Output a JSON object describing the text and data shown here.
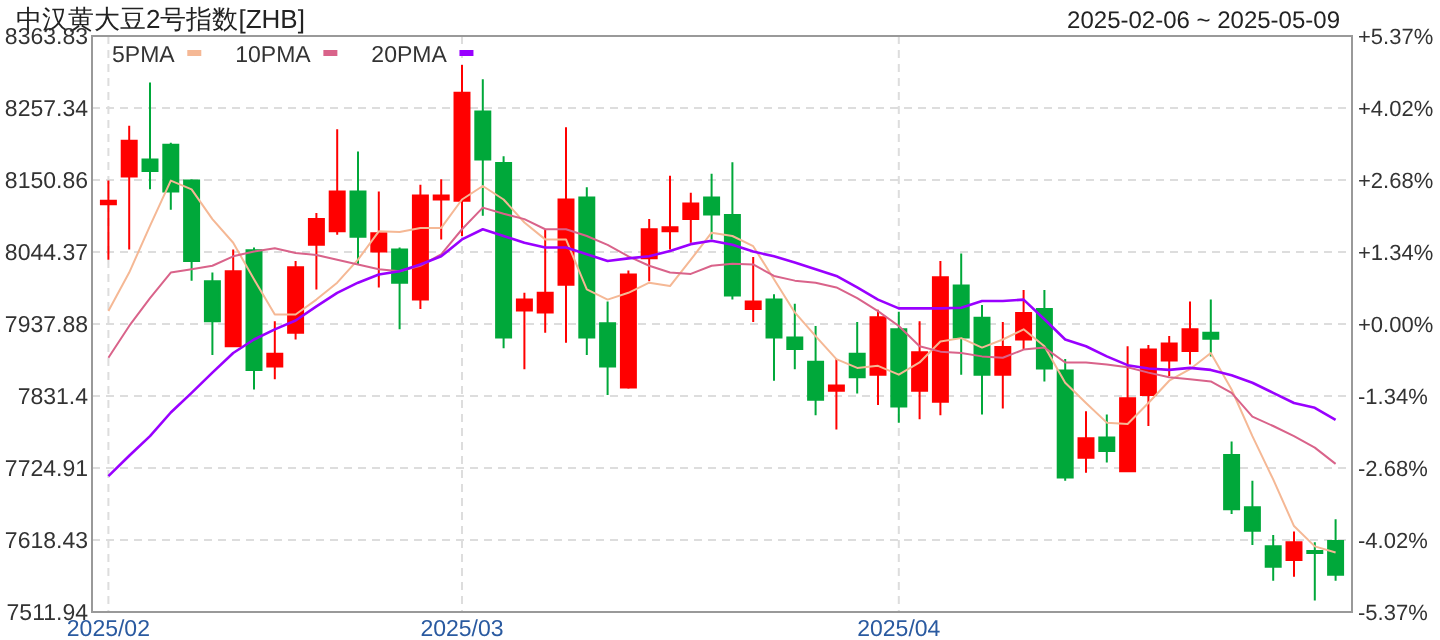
{
  "chart_data": {
    "type": "candlestick",
    "title": "中汉黄大豆2号指数[ZHB]",
    "subtitle": "2025-02-06 ~ 2025-05-09",
    "categories": [
      "2025/02",
      null,
      null,
      null,
      null,
      null,
      null,
      null,
      null,
      null,
      null,
      null,
      null,
      null,
      null,
      null,
      null,
      "2025/03",
      null,
      null,
      null,
      null,
      null,
      null,
      null,
      null,
      null,
      null,
      null,
      null,
      null,
      null,
      null,
      null,
      null,
      null,
      null,
      null,
      "2025/04",
      null,
      null,
      null,
      null,
      null,
      null,
      null,
      null,
      null,
      null,
      null,
      null,
      null,
      null,
      null,
      null,
      null,
      null,
      null,
      null,
      null
    ],
    "ohlc": [
      [
        8115,
        8150,
        8033,
        8120
      ],
      [
        8156,
        8231,
        8048,
        8209
      ],
      [
        8181,
        8295,
        8137,
        8164
      ],
      [
        8203,
        8206,
        8107,
        8134
      ],
      [
        8150,
        8152,
        8002,
        8031
      ],
      [
        8001,
        8014,
        7892,
        7942
      ],
      [
        7905,
        8048,
        7905,
        8016
      ],
      [
        8047,
        8051,
        7841,
        7870
      ],
      [
        7875,
        7942,
        7856,
        7894
      ],
      [
        7925,
        8031,
        7915,
        8022
      ],
      [
        8055,
        8102,
        7989,
        8093
      ],
      [
        8075,
        8226,
        8070,
        8134
      ],
      [
        8134,
        8193,
        8026,
        8067
      ],
      [
        8045,
        8134,
        7992,
        8072
      ],
      [
        8048,
        8051,
        7930,
        7999
      ],
      [
        7974,
        8144,
        7960,
        8128
      ],
      [
        8122,
        8152,
        8063,
        8128
      ],
      [
        8120,
        8321,
        8068,
        8280
      ],
      [
        8252,
        8300,
        8098,
        8181
      ],
      [
        8176,
        8186,
        7902,
        7918
      ],
      [
        7958,
        7984,
        7871,
        7974
      ],
      [
        7955,
        8078,
        7925,
        7984
      ],
      [
        7996,
        8229,
        7910,
        8122
      ],
      [
        8125,
        8140,
        7892,
        7918
      ],
      [
        7939,
        7971,
        7833,
        7875
      ],
      [
        7844,
        8017,
        7842,
        8011
      ],
      [
        8035,
        8093,
        8001,
        8078
      ],
      [
        8075,
        8157,
        8048,
        8081
      ],
      [
        8093,
        8132,
        8058,
        8116
      ],
      [
        8125,
        8160,
        8063,
        8100
      ],
      [
        8099,
        8177,
        7974,
        7980
      ],
      [
        7960,
        8037,
        7941,
        7971
      ],
      [
        7974,
        7982,
        7854,
        7918
      ],
      [
        7918,
        7968,
        7871,
        7901
      ],
      [
        7882,
        7935,
        7803,
        7826
      ],
      [
        7839,
        7886,
        7782,
        7847
      ],
      [
        7894,
        7941,
        7835,
        7859
      ],
      [
        7863,
        7959,
        7818,
        7948
      ],
      [
        7930,
        7956,
        7792,
        7816
      ],
      [
        7839,
        7942,
        7797,
        7896
      ],
      [
        7823,
        8031,
        7803,
        8007
      ],
      [
        7995,
        8042,
        7863,
        7918
      ],
      [
        7947,
        7966,
        7804,
        7863
      ],
      [
        7863,
        7941,
        7813,
        7904
      ],
      [
        7915,
        7988,
        7901,
        7954
      ],
      [
        7960,
        7988,
        7853,
        7872
      ],
      [
        7869,
        7886,
        7706,
        7711
      ],
      [
        7740,
        7809,
        7718,
        7769
      ],
      [
        7770,
        7804,
        7733,
        7750
      ],
      [
        7720,
        7905,
        7720,
        7828
      ],
      [
        7833,
        7907,
        7787,
        7900
      ],
      [
        7884,
        7920,
        7861,
        7909
      ],
      [
        7898,
        7971,
        7878,
        7930
      ],
      [
        7925,
        7974,
        7890,
        7916
      ],
      [
        7744,
        7764,
        7657,
        7664
      ],
      [
        7667,
        7706,
        7611,
        7632
      ],
      [
        7609,
        7626,
        7558,
        7579
      ],
      [
        7589,
        7631,
        7564,
        7615
      ],
      [
        7602,
        7615,
        7529,
        7600
      ],
      [
        7617,
        7649,
        7558,
        7567
      ]
    ],
    "series": [
      {
        "name": "5PMA",
        "type": "line",
        "color": "#f5b895",
        "values": [
          7957,
          8014,
          8083,
          8150,
          8137,
          8093,
          8058,
          8004,
          7952,
          7952,
          7974,
          7999,
          8033,
          8075,
          8074,
          8080,
          8080,
          8122,
          8142,
          8122,
          8088,
          8063,
          8063,
          7989,
          7974,
          7984,
          7999,
          7994,
          8033,
          8073,
          8068,
          8053,
          8004,
          7955,
          7920,
          7886,
          7873,
          7876,
          7863,
          7881,
          7912,
          7917,
          7903,
          7915,
          7930,
          7905,
          7851,
          7821,
          7792,
          7790,
          7821,
          7854,
          7871,
          7895,
          7841,
          7772,
          7708,
          7639,
          7609,
          7600
        ]
      },
      {
        "name": "10PMA",
        "type": "line",
        "color": "#d9638a",
        "values": [
          7888,
          7935,
          7976,
          8014,
          8019,
          8024,
          8038,
          8045,
          8050,
          8043,
          8040,
          8033,
          8026,
          8019,
          8016,
          8024,
          8041,
          8078,
          8110,
          8101,
          8093,
          8078,
          8078,
          8068,
          8055,
          8038,
          8024,
          8014,
          8012,
          8024,
          8027,
          8026,
          8009,
          8002,
          7999,
          7992,
          7976,
          7957,
          7935,
          7905,
          7897,
          7895,
          7890,
          7888,
          7900,
          7903,
          7881,
          7881,
          7878,
          7874,
          7866,
          7859,
          7856,
          7853,
          7836,
          7801,
          7787,
          7772,
          7755,
          7731
        ]
      },
      {
        "name": "20PMA",
        "type": "line",
        "color": "#9900ff",
        "values": [
          7713,
          7743,
          7772,
          7807,
          7836,
          7866,
          7895,
          7915,
          7930,
          7943,
          7964,
          7984,
          7999,
          8011,
          8016,
          8026,
          8038,
          8063,
          8078,
          8068,
          8058,
          8051,
          8051,
          8041,
          8031,
          8035,
          8038,
          8046,
          8056,
          8061,
          8055,
          8045,
          8038,
          8029,
          8019,
          8009,
          7992,
          7974,
          7961,
          7961,
          7961,
          7962,
          7972,
          7972,
          7974,
          7945,
          7915,
          7905,
          7890,
          7877,
          7872,
          7870,
          7873,
          7870,
          7862,
          7851,
          7836,
          7821,
          7814,
          7796
        ]
      }
    ],
    "ylim": [
      7511.94,
      8363.83
    ],
    "yticks": [
      7511.94,
      7618.43,
      7724.91,
      7831.4,
      7937.88,
      8044.37,
      8150.86,
      8257.34,
      8363.83
    ],
    "y2lim": [
      -5.37,
      5.37
    ],
    "y2ticks": [
      {
        "value": -5.37,
        "label": "-5.37%"
      },
      {
        "value": -4.02,
        "label": "-4.02%"
      },
      {
        "value": -2.68,
        "label": "-2.68%"
      },
      {
        "value": -1.34,
        "label": "-1.34%"
      },
      {
        "value": 0,
        "label": "+0.00%"
      },
      {
        "value": 1.34,
        "label": "+1.34%"
      },
      {
        "value": 2.68,
        "label": "+2.68%"
      },
      {
        "value": 4.02,
        "label": "+4.02%"
      },
      {
        "value": 5.37,
        "label": "+5.37%"
      }
    ],
    "grid": true,
    "legend": "top left"
  }
}
